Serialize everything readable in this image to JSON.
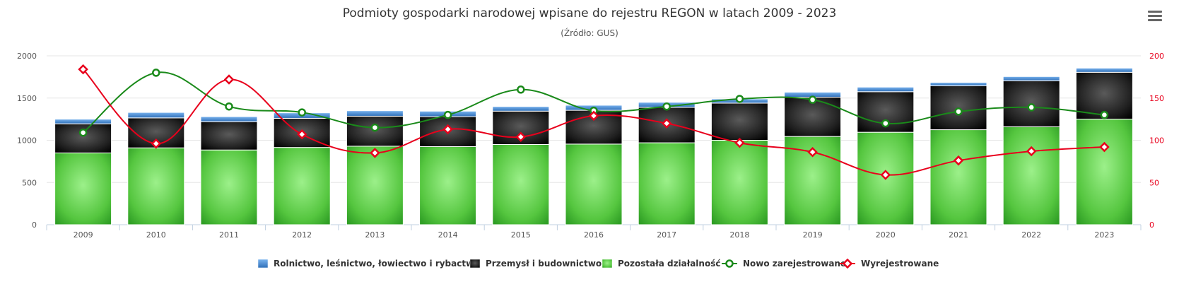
{
  "chart_data": {
    "type": "bar",
    "title": "Podmioty gospodarki narodowej wpisane do rejestru REGON w latach 2009 - 2023",
    "subtitle": "(Źródło: GUS)",
    "categories": [
      "2009",
      "2010",
      "2011",
      "2012",
      "2013",
      "2014",
      "2015",
      "2016",
      "2017",
      "2018",
      "2019",
      "2020",
      "2021",
      "2022",
      "2023"
    ],
    "left_axis": {
      "ylim": [
        0,
        2000
      ],
      "ticks": [
        "0",
        "500",
        "1000",
        "1500",
        "2000"
      ]
    },
    "right_axis": {
      "ylim": [
        0,
        200
      ],
      "ticks": [
        "0",
        "50",
        "100",
        "150",
        "200"
      ]
    },
    "stacked_series": [
      {
        "name": "Pozostała działalność",
        "color": "#5fcf4a",
        "values": [
          850,
          910,
          885,
          915,
          930,
          925,
          950,
          955,
          970,
          1000,
          1045,
          1095,
          1125,
          1160,
          1250
        ]
      },
      {
        "name": "Przemysł i budownictwo",
        "color": "#1c1c1c",
        "values": [
          345,
          355,
          335,
          345,
          355,
          355,
          395,
          400,
          420,
          440,
          465,
          480,
          520,
          545,
          555
        ]
      },
      {
        "name": "Rolnictwo, leśnictwo, łowiectwo i rybactwo",
        "color": "#4a90d9",
        "values": [
          55,
          65,
          60,
          65,
          65,
          65,
          55,
          60,
          60,
          50,
          60,
          55,
          40,
          50,
          50
        ]
      }
    ],
    "line_series": [
      {
        "name": "Nowo zarejestrowane",
        "color": "#1a8a1a",
        "marker": "circle",
        "values": [
          109,
          180,
          140,
          133,
          115,
          130,
          160,
          135,
          140,
          149,
          148,
          120,
          134,
          139,
          130
        ]
      },
      {
        "name": "Wyrejestrowane",
        "color": "#e8001c",
        "marker": "diamond",
        "values": [
          184,
          96,
          172,
          107,
          85,
          113,
          104,
          129,
          120,
          97,
          86,
          59,
          76,
          87,
          92
        ]
      }
    ],
    "legend_order": [
      "Rolnictwo, leśnictwo, łowiectwo i rybactwo",
      "Przemysł i budownictwo",
      "Pozostała działalność",
      "Nowo zarejestrowane",
      "Wyrejestrowane"
    ],
    "legend_position": "bottom-center",
    "grid": true
  }
}
